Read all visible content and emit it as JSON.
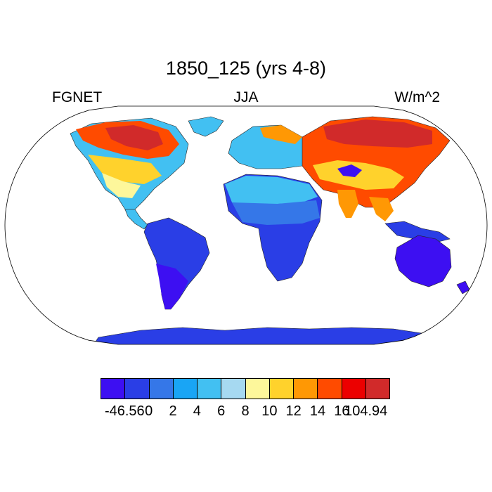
{
  "title": "1850_125 (yrs 4-8)",
  "subtitle": {
    "left": "FGNET",
    "center": "JJA",
    "right": "W/m^2"
  },
  "map": {
    "projection": "robinson",
    "background": "#ffffff",
    "outline_color": "#000000"
  },
  "colorbar": {
    "colors": [
      "#3d0ff2",
      "#2a3ee6",
      "#3577e8",
      "#19a5f5",
      "#42c0f2",
      "#a6d9f1",
      "#fdf79b",
      "#ffd22c",
      "#ff9804",
      "#ff4b00",
      "#ec0000",
      "#d12a2a"
    ],
    "labels": [
      "-46.56",
      "0",
      "2",
      "4",
      "6",
      "8",
      "10",
      "12",
      "14",
      "16",
      "104.94"
    ]
  }
}
